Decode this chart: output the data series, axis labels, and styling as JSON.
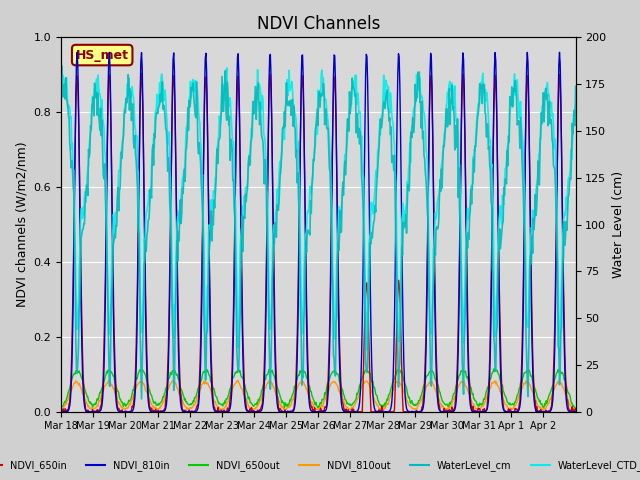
{
  "title": "NDVI Channels",
  "ylabel_left": "NDVI channels (W/m2/nm)",
  "ylabel_right": "Water Level (cm)",
  "ylim_left": [
    0.0,
    1.0
  ],
  "ylim_right": [
    0,
    200
  ],
  "background_color": "#d0d0d0",
  "plot_bg_color": "#d8d8d8",
  "legend_label": "HS_met",
  "legend_box_color": "#ffff88",
  "legend_box_edge": "#8b0000",
  "x_tick_labels": [
    "Mar 18",
    "Mar 19",
    "Mar 20",
    "Mar 21",
    "Mar 22",
    "Mar 23",
    "Mar 24",
    "Mar 25",
    "Mar 26",
    "Mar 27",
    "Mar 28",
    "Mar 29",
    "Mar 30",
    "Mar 31",
    "Apr 1",
    "Apr 2"
  ],
  "n_days": 16,
  "series": {
    "NDVI_650in": {
      "color": "#cc0000",
      "lw": 1.0,
      "zorder": 3
    },
    "NDVI_810in": {
      "color": "#0000cc",
      "lw": 1.0,
      "zorder": 4
    },
    "NDVI_650out": {
      "color": "#00cc00",
      "lw": 1.0,
      "zorder": 2
    },
    "NDVI_810out": {
      "color": "#ff9900",
      "lw": 1.0,
      "zorder": 2
    },
    "WaterLevel_cm": {
      "color": "#00bbbb",
      "lw": 1.2,
      "zorder": 1,
      "alpha": 0.9
    },
    "WaterLevel_CTD_cm": {
      "color": "#00eeee",
      "lw": 1.2,
      "zorder": 1,
      "alpha": 0.9
    }
  }
}
